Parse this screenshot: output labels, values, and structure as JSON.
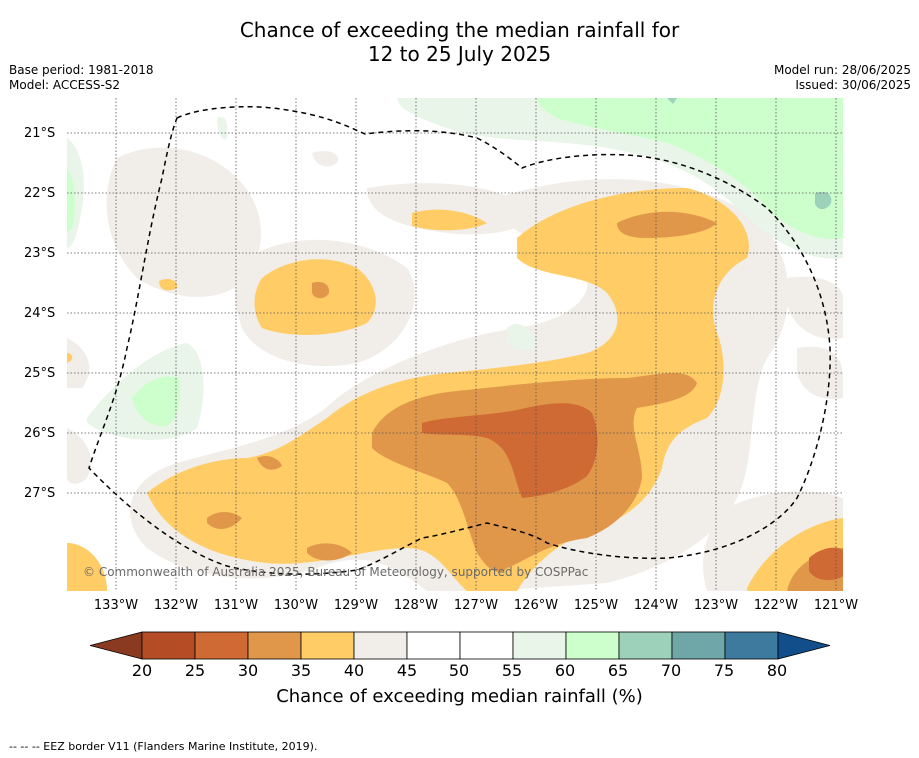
{
  "title_line1": "Chance of exceeding the median rainfall for",
  "title_line2": "12 to 25 July 2025",
  "base_period": "Base period: 1981-2018",
  "model": "Model: ACCESS-S2",
  "model_run": "Model run: 28/06/2025",
  "issued": "Issued: 30/06/2025",
  "lat_labels": [
    "21°S",
    "22°S",
    "23°S",
    "24°S",
    "25°S",
    "26°S",
    "27°S"
  ],
  "lon_labels": [
    "133°W",
    "132°W",
    "131°W",
    "130°W",
    "129°W",
    "128°W",
    "127°W",
    "126°W",
    "125°W",
    "124°W",
    "123°W",
    "122°W",
    "121°W"
  ],
  "copyright": "© Commonwealth of Australia 2025, Bureau of Meteorology, supported by COSPPac",
  "colorbar": {
    "ticks": [
      "20",
      "25",
      "30",
      "35",
      "40",
      "45",
      "50",
      "55",
      "60",
      "65",
      "70",
      "75",
      "80"
    ],
    "colors": [
      "#b44c26",
      "#cf6a34",
      "#e0974a",
      "#ffcc66",
      "#f1ede8",
      "#ffffff",
      "#ffffff",
      "#e9f5e9",
      "#ccffcc",
      "#9dd1b9",
      "#6fa6a8",
      "#3e7a9e"
    ],
    "under_color": "#8b3a22",
    "over_color": "#124e8a",
    "label": "Chance of exceeding median rainfall (%)"
  },
  "footer": "--  --  -- EEZ border V11 (Flanders Marine Institute, 2019)."
}
